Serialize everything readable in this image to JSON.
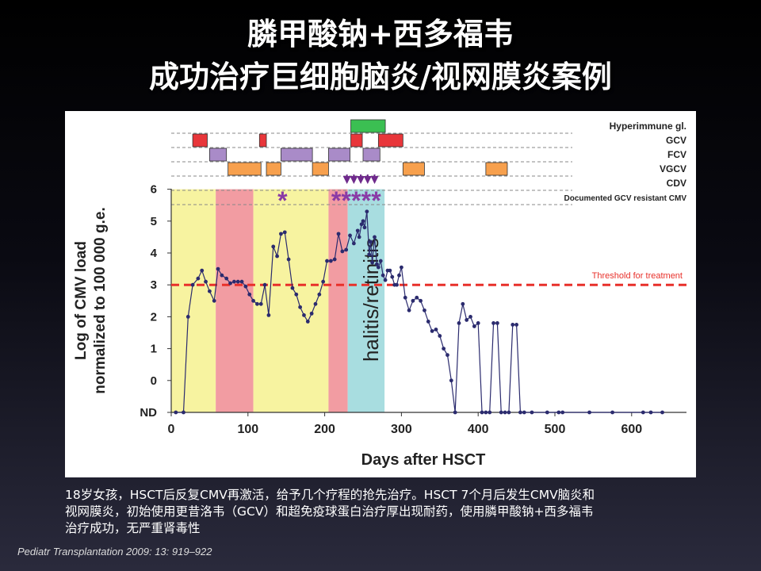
{
  "slide": {
    "title_line1": "膦甲酸钠+西多福韦",
    "title_line2": "成功治疗巨细胞脑炎/视网膜炎案例",
    "caption_line1": "18岁女孩，HSCT后反复CMV再激活，给予几个疗程的抢先治疗。HSCT 7个月后发生CMV脑炎和",
    "caption_line2": "视网膜炎，初始使用更昔洛韦（GCV）和超免疫球蛋白治疗厚出现耐药，使用膦甲酸钠+西多福韦",
    "caption_line3": "治疗成功，无严重肾毒性",
    "citation": "Pediatr Transplantation 2009: 13: 919–922"
  },
  "chart_data": {
    "type": "line",
    "xlabel": "Days after HSCT",
    "ylabel_line1": "Log of CMV load",
    "ylabel_line2": "normalized to 100 000 g.e.",
    "x_ticks": [
      0,
      100,
      200,
      300,
      400,
      500,
      600
    ],
    "y_tick_labels": [
      "ND",
      "0",
      "1",
      "2",
      "3",
      "4",
      "5",
      "6"
    ],
    "xlim": [
      0,
      660
    ],
    "ylim": [
      -1,
      6
    ],
    "threshold": {
      "value": 3,
      "label": "Threshold for treatment",
      "color": "#e8302a"
    },
    "series": [
      {
        "color": "#2b2b6e",
        "x": [
          6,
          16,
          22,
          28,
          35,
          40,
          45,
          50,
          56,
          61,
          66,
          72,
          77,
          82,
          87,
          92,
          97,
          102,
          107,
          112,
          117,
          122,
          127,
          133,
          138,
          143,
          148,
          153,
          158,
          163,
          168,
          173,
          178,
          183,
          188,
          193,
          198,
          203,
          208,
          213,
          218,
          223,
          228,
          233,
          238,
          243,
          245,
          248,
          250,
          252,
          255,
          258,
          260,
          262,
          265,
          268,
          270,
          273,
          276,
          279,
          282,
          285,
          288,
          291,
          294,
          297,
          300,
          305,
          310,
          315,
          320,
          325,
          330,
          335,
          340,
          345,
          350,
          355,
          360,
          365,
          370,
          375,
          380,
          385,
          390,
          395,
          400,
          405,
          410,
          415,
          420,
          425,
          430,
          435,
          440,
          445,
          450,
          455,
          460,
          470,
          490,
          505,
          510,
          545,
          575,
          615,
          625,
          640
        ],
        "y": [
          -1,
          -1,
          2.0,
          3.0,
          3.2,
          3.45,
          3.1,
          2.8,
          2.5,
          3.5,
          3.3,
          3.2,
          3.05,
          3.1,
          3.1,
          3.1,
          2.95,
          2.7,
          2.5,
          2.4,
          2.4,
          3.0,
          2.05,
          4.2,
          3.9,
          4.6,
          4.65,
          3.8,
          2.9,
          2.7,
          2.3,
          2.05,
          1.85,
          2.1,
          2.4,
          2.7,
          3.1,
          3.75,
          3.75,
          3.8,
          4.6,
          4.05,
          4.1,
          4.55,
          4.3,
          4.7,
          4.5,
          4.9,
          5.0,
          4.8,
          5.3,
          3.95,
          4.35,
          3.7,
          4.5,
          3.65,
          3.55,
          3.75,
          3.3,
          3.15,
          3.45,
          3.45,
          3.25,
          3.0,
          3.0,
          3.3,
          3.55,
          2.6,
          2.2,
          2.5,
          2.6,
          2.5,
          2.2,
          1.85,
          1.55,
          1.6,
          1.4,
          1.0,
          0.8,
          0.0,
          -1,
          1.8,
          2.4,
          1.9,
          2.0,
          1.7,
          1.8,
          -1,
          -1,
          -1,
          1.8,
          1.8,
          -1,
          -1,
          -1,
          1.75,
          1.75,
          -1,
          -1,
          -1,
          -1,
          -1,
          -1,
          -1,
          -1,
          -1,
          -1,
          -1
        ],
        "note": "sparkline-like viral load trace"
      }
    ],
    "shaded_periods": [
      {
        "from": 0,
        "to": 58,
        "color": "#f7f3a0"
      },
      {
        "from": 58,
        "to": 107,
        "color": "#f29ca2"
      },
      {
        "from": 107,
        "to": 205,
        "color": "#f7f3a0"
      },
      {
        "from": 205,
        "to": 230,
        "color": "#f29ca2"
      },
      {
        "from": 230,
        "to": 278,
        "color": "#a8dde0",
        "label": "halitis/retinitis"
      }
    ],
    "treatment_rows": [
      {
        "label": "Hyperimmune gl.",
        "color": "#3bbf52",
        "bars": [
          [
            234,
            279
          ]
        ]
      },
      {
        "label": "GCV",
        "color": "#e8363a",
        "bars": [
          [
            28,
            47
          ],
          [
            115,
            124
          ],
          [
            234,
            249
          ],
          [
            270,
            302
          ]
        ]
      },
      {
        "label": "FCV",
        "color": "#a98bc8",
        "bars": [
          [
            50,
            72
          ],
          [
            143,
            184
          ],
          [
            205,
            233
          ],
          [
            250,
            272
          ]
        ]
      },
      {
        "label": "VGCV",
        "color": "#f7a04d",
        "bars": [
          [
            74,
            117
          ],
          [
            124,
            143
          ],
          [
            184,
            205
          ],
          [
            302,
            330
          ],
          [
            410,
            438
          ]
        ]
      },
      {
        "label": "CDV",
        "color": "#a98bc8",
        "bars": []
      },
      {
        "label": "Documented GCV resistant CMV",
        "color": "#6f2a8c",
        "bars": []
      }
    ],
    "resistance_arrows": [
      229,
      238,
      247,
      256,
      265
    ],
    "asterisks": [
      145,
      215,
      228,
      241,
      254,
      267
    ],
    "asterisk_color": "#8a3aa6",
    "grid": false
  }
}
